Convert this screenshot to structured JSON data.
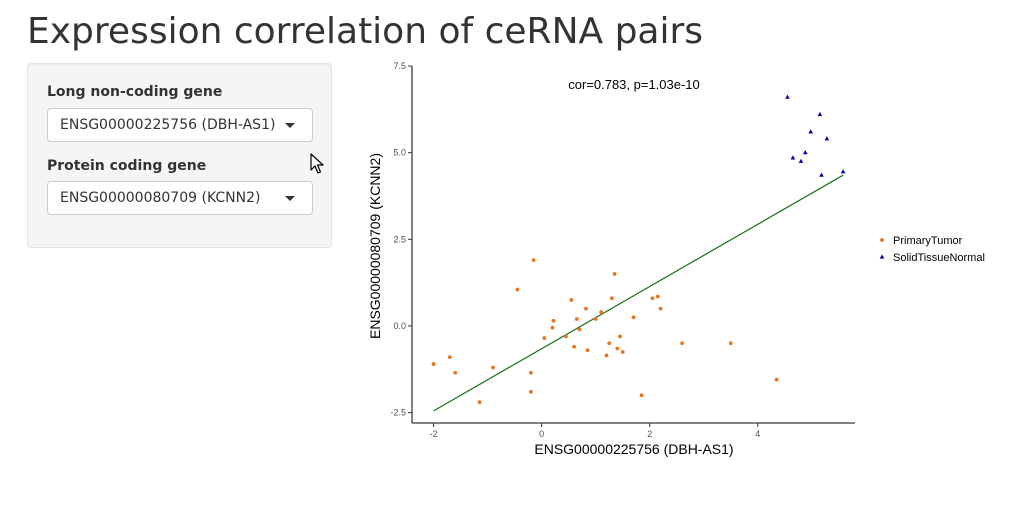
{
  "page": {
    "title": "Expression correlation of ceRNA pairs"
  },
  "sidebar": {
    "lnc_label": "Long non-coding gene",
    "lnc_value": "ENSG00000225756 (DBH-AS1)",
    "pc_label": "Protein coding gene",
    "pc_value": "ENSG00000080709 (KCNN2)"
  },
  "icons": {
    "dropdown": "caret-down-icon",
    "cursor": "mouse-pointer-icon"
  },
  "chart_data": {
    "type": "scatter",
    "annotation": "cor=0.783, p=1.03e-10",
    "xlabel": "ENSG00000225756 (DBH-AS1)",
    "ylabel": "ENSG00000080709 (KCNN2)",
    "xlim": [
      -2.4,
      5.8
    ],
    "ylim": [
      -2.8,
      7.5
    ],
    "xticks": [
      -2,
      0,
      2,
      4
    ],
    "yticks": [
      -2.5,
      0.0,
      2.5,
      5.0,
      7.5
    ],
    "grid": false,
    "legend_position": "right",
    "series": [
      {
        "name": "PrimaryTumor",
        "color": "#e6761f",
        "marker": "circle",
        "points": [
          [
            -2.0,
            -1.1
          ],
          [
            -1.7,
            -0.9
          ],
          [
            -1.6,
            -1.35
          ],
          [
            -1.15,
            -2.2
          ],
          [
            -0.9,
            -1.2
          ],
          [
            -0.45,
            1.05
          ],
          [
            -0.2,
            -1.9
          ],
          [
            -0.2,
            -1.35
          ],
          [
            -0.15,
            1.9
          ],
          [
            0.05,
            -0.35
          ],
          [
            0.2,
            -0.05
          ],
          [
            0.22,
            0.15
          ],
          [
            0.45,
            -0.3
          ],
          [
            0.55,
            0.75
          ],
          [
            0.6,
            -0.6
          ],
          [
            0.65,
            0.2
          ],
          [
            0.7,
            -0.1
          ],
          [
            0.82,
            0.5
          ],
          [
            0.85,
            -0.7
          ],
          [
            1.0,
            0.2
          ],
          [
            1.1,
            0.4
          ],
          [
            1.2,
            -0.85
          ],
          [
            1.25,
            -0.5
          ],
          [
            1.3,
            0.8
          ],
          [
            1.35,
            1.5
          ],
          [
            1.4,
            -0.65
          ],
          [
            1.45,
            -0.3
          ],
          [
            1.5,
            -0.75
          ],
          [
            1.7,
            0.25
          ],
          [
            1.85,
            -2.0
          ],
          [
            2.05,
            0.8
          ],
          [
            2.15,
            0.85
          ],
          [
            2.2,
            0.5
          ],
          [
            2.6,
            -0.5
          ],
          [
            3.5,
            -0.5
          ],
          [
            4.35,
            -1.55
          ]
        ]
      },
      {
        "name": "SolidTissueNormal",
        "color": "#0000aa",
        "marker": "triangle",
        "points": [
          [
            4.55,
            6.6
          ],
          [
            4.65,
            4.85
          ],
          [
            4.8,
            4.75
          ],
          [
            4.88,
            5.0
          ],
          [
            4.98,
            5.6
          ],
          [
            5.15,
            6.1
          ],
          [
            5.18,
            4.35
          ],
          [
            5.28,
            5.4
          ],
          [
            5.58,
            4.45
          ]
        ]
      }
    ],
    "fit_line": {
      "color": "#1a6e1a",
      "x": [
        -2.0,
        5.58
      ],
      "y": [
        -2.45,
        4.35
      ]
    }
  }
}
